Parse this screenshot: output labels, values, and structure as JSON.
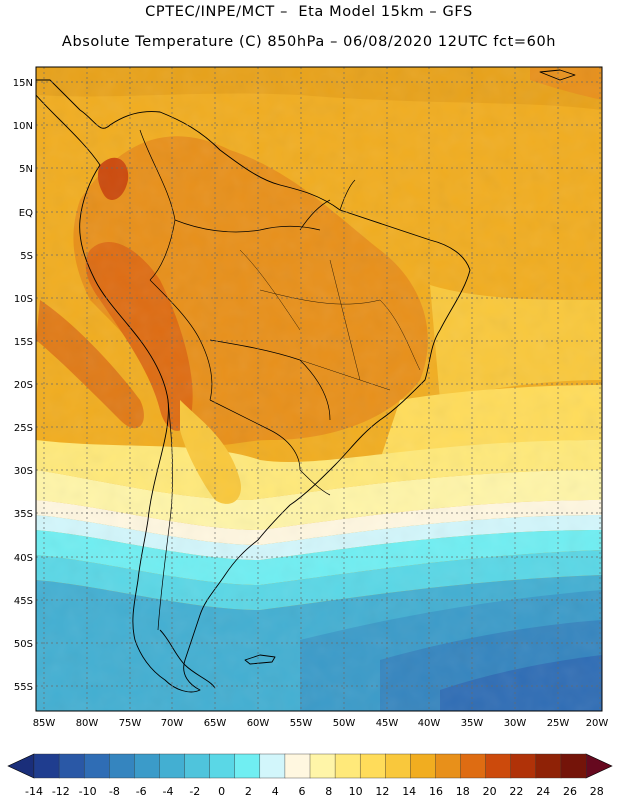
{
  "header": {
    "line1": "CPTEC/INPE/MCT –  Eta Model 15km – GFS",
    "line2": "Absolute Temperature (C) 850hPa – 06/08/2020 12UTC fct=60h"
  },
  "axes": {
    "lat_labels": [
      "15N",
      "10N",
      "5N",
      "EQ",
      "5S",
      "10S",
      "15S",
      "20S",
      "25S",
      "30S",
      "35S",
      "40S",
      "45S",
      "50S",
      "55S"
    ],
    "lon_labels": [
      "85W",
      "80W",
      "75W",
      "70W",
      "65W",
      "60W",
      "55W",
      "50W",
      "45W",
      "40W",
      "35W",
      "30W",
      "25W",
      "20W"
    ]
  },
  "colorbar": {
    "labels": [
      "-14",
      "-12",
      "-10",
      "-8",
      "-6",
      "-4",
      "-2",
      "0",
      "2",
      "4",
      "6",
      "8",
      "10",
      "12",
      "14",
      "16",
      "18",
      "20",
      "22",
      "24",
      "26",
      "28"
    ],
    "colors": [
      "#1f3d8f",
      "#2a58a6",
      "#2f6db5",
      "#3585bf",
      "#3b9bc9",
      "#43afd2",
      "#4fc4dc",
      "#5ad7e6",
      "#70eef2",
      "#d2f6fb",
      "#fff7e0",
      "#fff5a8",
      "#ffe97a",
      "#ffdc5a",
      "#f9c83c",
      "#f1ad20",
      "#e8901a",
      "#de6c12",
      "#cc4a0c",
      "#b03208",
      "#8f2206",
      "#741409"
    ],
    "low_color": "#1a2e7a",
    "high_color": "#66091f"
  }
}
